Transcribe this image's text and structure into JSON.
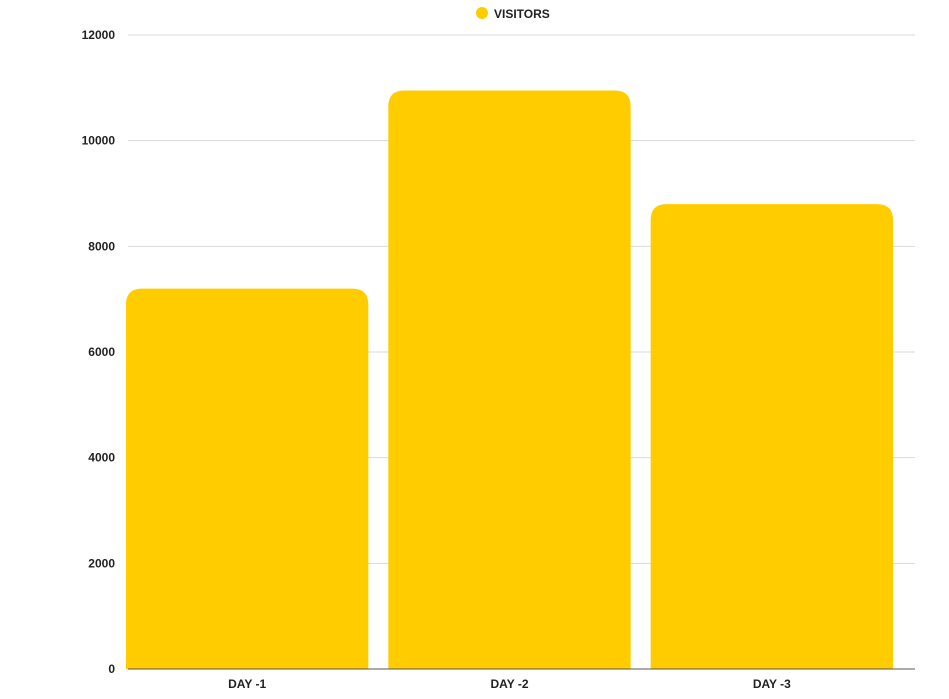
{
  "chart_data": {
    "type": "bar",
    "categories": [
      "DAY -1",
      "DAY -2",
      "DAY -3"
    ],
    "series": [
      {
        "name": "VISITORS",
        "values": [
          7200,
          10950,
          8800
        ],
        "color": "#FFCC00"
      }
    ],
    "ylim": [
      0,
      12000
    ],
    "yticks": [
      0,
      2000,
      4000,
      6000,
      8000,
      10000,
      12000
    ],
    "grid": true,
    "legend_position": "top-center"
  },
  "colors": {
    "bar": "#FFCC00",
    "gridline": "#d9d9d9",
    "axis": "#555555",
    "text": "#222222"
  }
}
